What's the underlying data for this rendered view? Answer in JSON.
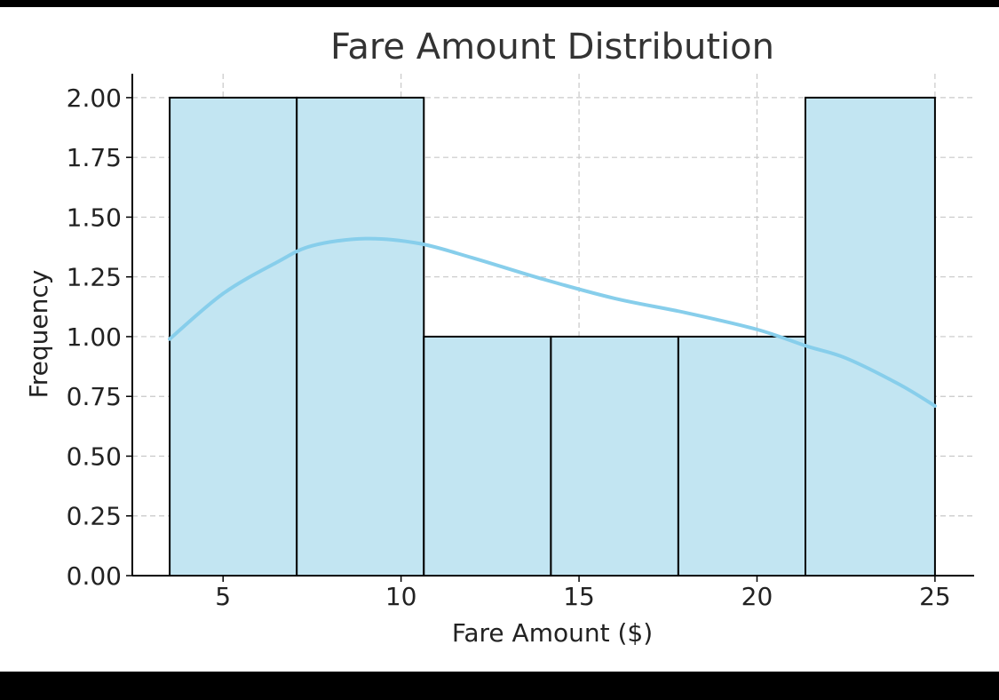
{
  "chart_data": {
    "type": "bar",
    "subtype": "histogram_with_kde",
    "title": "Fare Amount Distribution",
    "xlabel": "Fare Amount ($)",
    "ylabel": "Frequency",
    "xlim": [
      2.45,
      26.1
    ],
    "ylim": [
      0,
      2.1
    ],
    "xticks": [
      5,
      10,
      15,
      20,
      25
    ],
    "yticks": [
      0,
      0.25,
      0.5,
      0.75,
      1.0,
      1.25,
      1.5,
      1.75,
      2.0
    ],
    "xtick_labels": [
      "5",
      "10",
      "15",
      "20",
      "25"
    ],
    "ytick_labels": [
      "0.00",
      "0.25",
      "0.50",
      "0.75",
      "1.00",
      "1.25",
      "1.50",
      "1.75",
      "2.00"
    ],
    "bins": [
      {
        "start": 3.5,
        "end": 7.07,
        "count": 2
      },
      {
        "start": 7.07,
        "end": 10.64,
        "count": 2
      },
      {
        "start": 10.64,
        "end": 14.21,
        "count": 1
      },
      {
        "start": 14.21,
        "end": 17.79,
        "count": 1
      },
      {
        "start": 17.79,
        "end": 21.36,
        "count": 1
      },
      {
        "start": 21.36,
        "end": 25.0,
        "count": 2
      }
    ],
    "kde": {
      "x": [
        3.5,
        5,
        6.5,
        7.5,
        9,
        10.5,
        12,
        14,
        16,
        18,
        20,
        21.4,
        22.5,
        24,
        25
      ],
      "y": [
        0.99,
        1.18,
        1.31,
        1.38,
        1.41,
        1.39,
        1.33,
        1.24,
        1.16,
        1.1,
        1.03,
        0.96,
        0.91,
        0.8,
        0.71
      ]
    },
    "grid": true,
    "bar_color": "#c2e5f2",
    "line_color": "#87ceeb"
  }
}
